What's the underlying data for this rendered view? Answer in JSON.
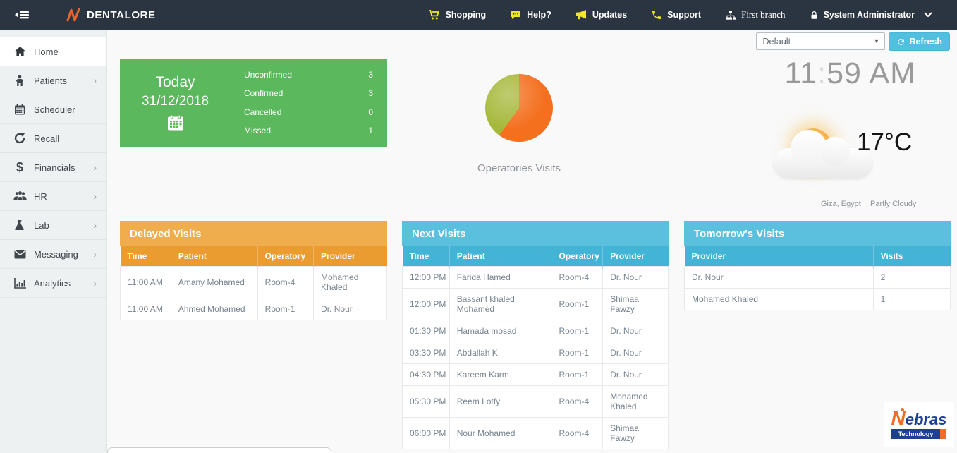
{
  "navbar": {
    "brand": "DENTALORE",
    "shopping": "Shopping",
    "help": "Help?",
    "updates": "Updates",
    "support": "Support",
    "branch": "First branch",
    "user": "System Administrator"
  },
  "sidebar": {
    "items": [
      {
        "label": "Home",
        "icon": "home-icon",
        "active": true,
        "has_submenu": false
      },
      {
        "label": "Patients",
        "icon": "patient-icon",
        "active": false,
        "has_submenu": true
      },
      {
        "label": "Scheduler",
        "icon": "calendar-icon",
        "active": false,
        "has_submenu": false
      },
      {
        "label": "Recall",
        "icon": "recall-icon",
        "active": false,
        "has_submenu": false
      },
      {
        "label": "Financials",
        "icon": "dollar-icon",
        "active": false,
        "has_submenu": true
      },
      {
        "label": "HR",
        "icon": "users-icon",
        "active": false,
        "has_submenu": true
      },
      {
        "label": "Lab",
        "icon": "flask-icon",
        "active": false,
        "has_submenu": true
      },
      {
        "label": "Messaging",
        "icon": "envelope-icon",
        "active": false,
        "has_submenu": true
      },
      {
        "label": "Analytics",
        "icon": "bar-chart-icon",
        "active": false,
        "has_submenu": true
      }
    ],
    "chevron": "›"
  },
  "controls": {
    "layout_select_value": "Default",
    "refresh_label": "Refresh"
  },
  "today_card": {
    "title": "Today",
    "date": "31/12/2018",
    "stats": [
      {
        "label": "Unconfirmed",
        "value": "3"
      },
      {
        "label": "Confirmed",
        "value": "3"
      },
      {
        "label": "Cancelled",
        "value": "0"
      },
      {
        "label": "Missed",
        "value": "1"
      }
    ]
  },
  "chart_data": {
    "type": "pie",
    "title": "Operatories Visits",
    "slices": [
      {
        "color": "#f4701f",
        "percent": 60
      },
      {
        "color": "#a6b83a",
        "percent": 40
      }
    ],
    "legend": "none"
  },
  "clock": {
    "hours": "11",
    "separator": ":",
    "minutes": "59 AM"
  },
  "weather": {
    "temperature": "17°C",
    "location": "Giza, Egypt",
    "condition": "Partly Cloudy"
  },
  "panels": {
    "delayed": {
      "title": "Delayed Visits",
      "columns": [
        "Time",
        "Patient",
        "Operatory",
        "Provider"
      ],
      "rows": [
        [
          "11:00 AM",
          "Amany Mohamed",
          "Room-4",
          "Mohamed Khaled"
        ],
        [
          "11:00 AM",
          "Ahmed Mohamed",
          "Room-1",
          "Dr. Nour"
        ]
      ]
    },
    "next": {
      "title": "Next Visits",
      "columns": [
        "Time",
        "Patient",
        "Operatory",
        "Provider"
      ],
      "rows": [
        [
          "12:00 PM",
          "Farida Hamed",
          "Room-4",
          "Dr. Nour"
        ],
        [
          "12:00 PM",
          "Bassant khaled Mohamed",
          "Room-1",
          "Shimaa Fawzy"
        ],
        [
          "01:30 PM",
          "Hamada mosad",
          "Room-1",
          "Dr. Nour"
        ],
        [
          "03:30 PM",
          "Abdallah K",
          "Room-1",
          "Dr. Nour"
        ],
        [
          "04:30 PM",
          "Kareem Karm",
          "Room-1",
          "Dr. Nour"
        ],
        [
          "05:30 PM",
          "Reem Lotfy",
          "Room-4",
          "Mohamed Khaled"
        ],
        [
          "06:00 PM",
          "Nour Mohamed",
          "Room-4",
          "Shimaa Fawzy"
        ]
      ]
    },
    "tomorrow": {
      "title": "Tomorrow's Visits",
      "columns": [
        "Provider",
        "Visits"
      ],
      "rows": [
        [
          "Dr. Nour",
          "2"
        ],
        [
          "Mohamed Khaled",
          "1"
        ]
      ]
    }
  },
  "footer_logo": {
    "prefix": "N",
    "name": "ebras",
    "tagline": "Technology"
  },
  "colors": {
    "navbar_bg": "#2b3542",
    "icon_yellow": "#f2e52e",
    "green": "#5cb85c",
    "orange_heading": "#f0ad4e",
    "orange_header_row": "#eb9c31",
    "blue_heading": "#5bc0de",
    "blue_header_row": "#43b3d6",
    "pie_orange": "#f4701f",
    "pie_green": "#a6b83a"
  }
}
